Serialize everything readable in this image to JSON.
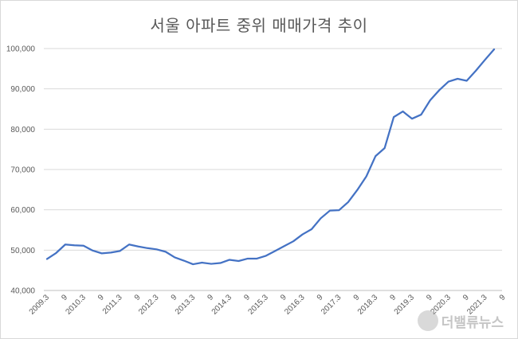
{
  "chart_data": {
    "type": "line",
    "title": "서울 아파트 중위 매매가격 추이",
    "xlabel": "",
    "ylabel": "",
    "ylim": [
      40000,
      100000
    ],
    "yticks": [
      "40,000",
      "50,000",
      "60,000",
      "70,000",
      "80,000",
      "90,000",
      "100,000"
    ],
    "xtick_labels": [
      "2009.3",
      "9",
      "2010.3",
      "9",
      "2011.3",
      "9",
      "2012.3",
      "9",
      "2013.3",
      "9",
      "2014.3",
      "9",
      "2015.3",
      "9",
      "2016.3",
      "9",
      "2017.3",
      "9",
      "2018.3",
      "9",
      "2019.3",
      "9",
      "2020.3",
      "9",
      "2021.3",
      "9"
    ],
    "grid": true,
    "legend": "none",
    "series": [
      {
        "color": "#4472c4",
        "values": [
          47800,
          49300,
          51400,
          51200,
          51100,
          49900,
          49200,
          49400,
          49800,
          51400,
          50900,
          50500,
          50200,
          49600,
          48200,
          47400,
          46500,
          46900,
          46600,
          46800,
          47600,
          47300,
          47900,
          47900,
          48600,
          49800,
          51000,
          52200,
          53900,
          55200,
          57900,
          59800,
          59900,
          61900,
          64900,
          68300,
          73300,
          75300,
          83000,
          84400,
          82600,
          83600,
          87200,
          89700,
          91800,
          92500,
          92000,
          94500,
          97200,
          99800
        ]
      }
    ]
  },
  "watermark": {
    "text": "더밸류뉴스"
  }
}
